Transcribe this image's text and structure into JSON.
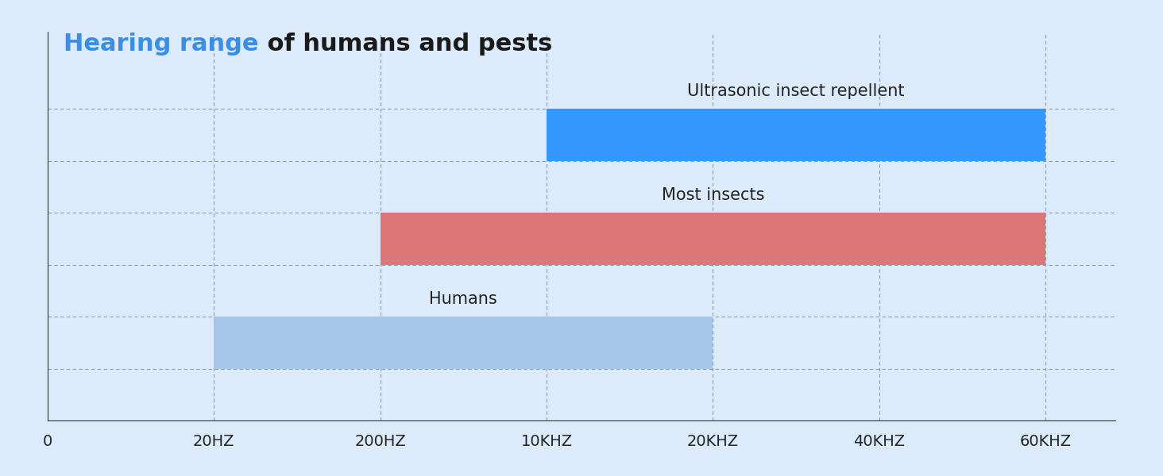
{
  "chart_data": {
    "type": "range_bar",
    "title": "Hearing range of humans and pests",
    "title_highlight": "Hearing range",
    "orientation": "horizontal",
    "categories": [
      "0",
      "20HZ",
      "200HZ",
      "10KHZ",
      "20KHZ",
      "40KHZ",
      "60KHZ"
    ],
    "series": [
      {
        "name": "Humans",
        "start": "20HZ",
        "end": "20KHZ",
        "color": "#a6c6e8"
      },
      {
        "name": "Most insects",
        "start": "200HZ",
        "end": "60KHZ",
        "color": "#dc7779"
      },
      {
        "name": "Ultrasonic insect repellent",
        "start": "10KHZ",
        "end": "60KHZ",
        "color": "#3399ff"
      }
    ],
    "grid": true,
    "tick_labels": "x"
  }
}
